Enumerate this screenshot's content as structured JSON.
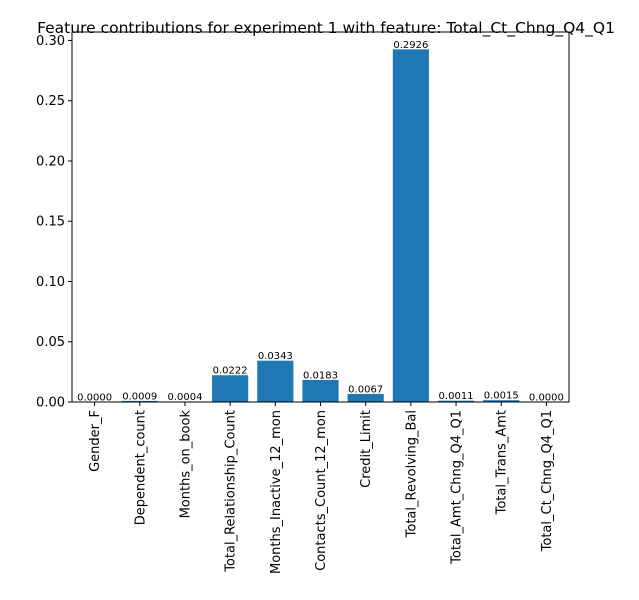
{
  "chart_data": {
    "type": "bar",
    "title": "Feature contributions for experiment 1 with feature: Total_Ct_Chng_Q4_Q1",
    "xlabel": "",
    "ylabel": "",
    "categories": [
      "Gender_F",
      "Dependent_count",
      "Months_on_book",
      "Total_Relationship_Count",
      "Months_Inactive_12_mon",
      "Contacts_Count_12_mon",
      "Credit_Limit",
      "Total_Revolving_Bal",
      "Total_Amt_Chng_Q4_Q1",
      "Total_Trans_Amt",
      "Total_Ct_Chng_Q4_Q1"
    ],
    "values": [
      0.0,
      0.0009,
      0.0004,
      0.0222,
      0.0343,
      0.0183,
      0.0067,
      0.2926,
      0.0011,
      0.0015,
      0.0
    ],
    "data_labels": [
      "0.0000",
      "0.0009",
      "0.0004",
      "0.0222",
      "0.0343",
      "0.0183",
      "0.0067",
      "0.2926",
      "0.0011",
      "0.0015",
      "0.0000"
    ],
    "ylim": [
      0,
      0.307
    ],
    "yticks": [
      0.0,
      0.05,
      0.1,
      0.15,
      0.2,
      0.25,
      0.3
    ],
    "ytick_labels": [
      "0.00",
      "0.05",
      "0.10",
      "0.15",
      "0.20",
      "0.25",
      "0.30"
    ],
    "grid": false,
    "legend": "none",
    "bar_color": "#1f77b4"
  }
}
